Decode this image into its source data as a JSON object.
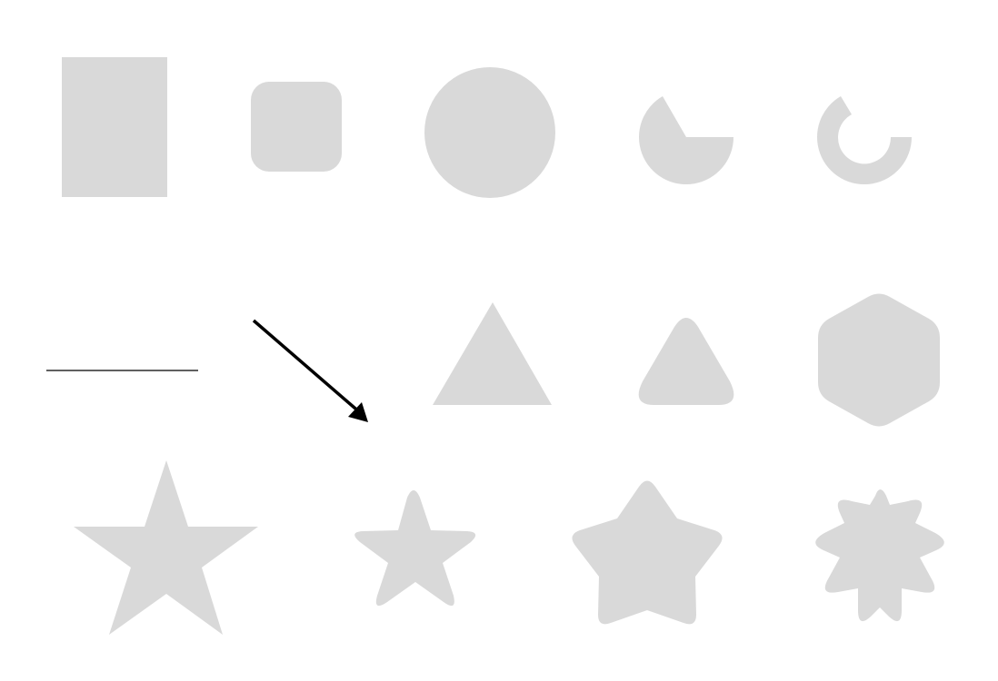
{
  "canvas": {
    "background": "#ffffff",
    "shape_fill": "#d9d9d9",
    "line_color": "#000000"
  },
  "shapes": [
    {
      "id": "rectangle",
      "kind": "rectangle"
    },
    {
      "id": "rounded-rectangle",
      "kind": "rounded-rectangle"
    },
    {
      "id": "circle",
      "kind": "circle"
    },
    {
      "id": "pie",
      "kind": "pie"
    },
    {
      "id": "arc",
      "kind": "arc"
    },
    {
      "id": "line",
      "kind": "line"
    },
    {
      "id": "arrow",
      "kind": "arrow"
    },
    {
      "id": "triangle",
      "kind": "triangle"
    },
    {
      "id": "rounded-triangle",
      "kind": "rounded-triangle"
    },
    {
      "id": "rounded-hexagon",
      "kind": "rounded-hexagon"
    },
    {
      "id": "star",
      "kind": "star"
    },
    {
      "id": "rounded-star",
      "kind": "rounded-star"
    },
    {
      "id": "rounded-pentagon-star",
      "kind": "rounded-star"
    },
    {
      "id": "rounded-burst",
      "kind": "rounded-burst"
    }
  ]
}
